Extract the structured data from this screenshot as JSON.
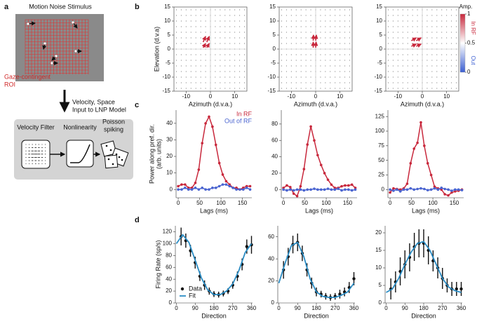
{
  "panels": [
    "a",
    "b",
    "c",
    "d"
  ],
  "diagram": {
    "stimulus_title": "Motion Noise Stimulus",
    "roi_label": [
      "Gaze-contingent",
      "ROI"
    ],
    "arrow_label": [
      "Velocity, Space",
      "Input to LNP Model"
    ],
    "stages": [
      [
        "Velocity Filter"
      ],
      [
        "Nonlinearity"
      ],
      [
        "Poisson",
        "spiking"
      ]
    ]
  },
  "chart_data": [
    {
      "type": "quiver",
      "xlabel": "Azimuth (d.v.a.)",
      "ylabel": "Elevation (d.v.a)",
      "xlim": [
        -15,
        15
      ],
      "ylim": [
        -15,
        15
      ],
      "xticks": [
        -10,
        0,
        10
      ],
      "yticks": [
        -15,
        -10,
        -5,
        0,
        5,
        10,
        15
      ],
      "color": "#c8283c",
      "arrows": {
        "x": [
          -3,
          -1.5,
          -3,
          -1.5
        ],
        "y": [
          2.5,
          2.5,
          0.5,
          0.5
        ],
        "u": [
          1,
          1,
          1,
          1
        ],
        "v": [
          2,
          2,
          1.5,
          1.5
        ]
      },
      "colorbar": {
        "title": "Amp.",
        "clim": [
          0,
          1
        ],
        "ticks": [
          1,
          0.5,
          0
        ],
        "labels": [
          "In RF",
          "Out"
        ],
        "colors": [
          "#c8283c",
          "#ffffff",
          "#3c5fd2"
        ]
      }
    },
    {
      "type": "quiver",
      "xlabel": "Azimuth (d.v.a.)",
      "xlim": [
        -15,
        15
      ],
      "ylim": [
        -15,
        15
      ],
      "xticks": [
        -10,
        0,
        10
      ],
      "yticks": [
        -15,
        -10,
        -5,
        0,
        5,
        10,
        15
      ],
      "color": "#c8283c",
      "arrows": {
        "x": [
          -1,
          0,
          -1,
          0
        ],
        "y": [
          3,
          3,
          0.5,
          0.5
        ],
        "u": [
          0.1,
          0.3,
          0,
          0.2
        ],
        "v": [
          2,
          2,
          2,
          2
        ]
      }
    },
    {
      "type": "quiver",
      "xlabel": "Azimuth (d.v.a.)",
      "xlim": [
        -15,
        15
      ],
      "ylim": [
        -15,
        15
      ],
      "xticks": [
        -10,
        0,
        10
      ],
      "yticks": [
        -15,
        -10,
        -5,
        0,
        5,
        10,
        15
      ],
      "color": "#c8283c",
      "arrows": {
        "x": [
          -4.5,
          -2.5,
          -4.5,
          -2.5
        ],
        "y": [
          3,
          3,
          1,
          1
        ],
        "u": [
          2,
          2,
          2,
          2
        ],
        "v": [
          1,
          1,
          0.8,
          0.8
        ]
      }
    },
    {
      "type": "line",
      "xlabel": "Lags (ms)",
      "ylabel": [
        "Power along pref. dir.",
        "(arb. units)"
      ],
      "legend": true,
      "xlim": [
        -5,
        172
      ],
      "ylim": [
        -5,
        48
      ],
      "xticks": [
        0,
        50,
        100,
        150
      ],
      "yticks": [
        0,
        10,
        20,
        30,
        40
      ],
      "x": [
        0,
        8,
        16,
        24,
        32,
        40,
        48,
        56,
        64,
        72,
        80,
        88,
        96,
        104,
        112,
        120,
        128,
        136,
        144,
        152,
        160,
        168
      ],
      "series": [
        {
          "name": "In RF",
          "color": "#c8283c",
          "values": [
            2,
            3,
            3,
            1,
            1,
            4,
            12,
            28,
            40,
            44,
            38,
            27,
            16,
            9,
            5,
            3,
            1,
            1,
            0,
            1,
            2,
            2
          ]
        },
        {
          "name": "Out of RF",
          "color": "#4a64d0",
          "values": [
            0,
            0,
            1,
            0,
            0,
            1,
            0,
            1,
            0,
            0,
            1,
            1,
            2,
            3,
            3,
            2,
            1,
            0,
            0,
            0,
            1,
            0
          ]
        }
      ]
    },
    {
      "type": "line",
      "xlabel": "Lags (ms)",
      "xlim": [
        -5,
        172
      ],
      "ylim": [
        -10,
        97
      ],
      "xticks": [
        0,
        50,
        100,
        150
      ],
      "yticks": [
        0,
        20,
        40,
        60,
        80
      ],
      "x": [
        0,
        8,
        16,
        24,
        32,
        40,
        48,
        56,
        64,
        72,
        80,
        88,
        96,
        104,
        112,
        120,
        128,
        136,
        144,
        152,
        160,
        168
      ],
      "series": [
        {
          "color": "#c8283c",
          "values": [
            2,
            5,
            3,
            -5,
            -8,
            4,
            25,
            55,
            77,
            60,
            42,
            30,
            20,
            12,
            6,
            2,
            2,
            4,
            5,
            5,
            6,
            2
          ]
        },
        {
          "color": "#4a64d0",
          "values": [
            0,
            -1,
            0,
            -1,
            0,
            0,
            -1,
            0,
            0,
            1,
            0,
            0,
            0,
            1,
            0,
            0,
            1,
            -1,
            0,
            0,
            -1,
            0
          ]
        }
      ]
    },
    {
      "type": "line",
      "xlabel": "Lags (ms)",
      "xlim": [
        -5,
        172
      ],
      "ylim": [
        -14,
        136
      ],
      "xticks": [
        0,
        50,
        100,
        150
      ],
      "yticks": [
        0,
        25,
        50,
        75,
        100,
        125
      ],
      "x": [
        0,
        8,
        16,
        24,
        32,
        40,
        48,
        56,
        64,
        72,
        80,
        88,
        96,
        104,
        112,
        120,
        128,
        136,
        144,
        152,
        160,
        168
      ],
      "series": [
        {
          "color": "#c8283c",
          "values": [
            -5,
            2,
            1,
            0,
            2,
            10,
            45,
            70,
            80,
            115,
            75,
            45,
            25,
            5,
            2,
            0,
            -8,
            -10,
            -5,
            -3,
            -2,
            0
          ]
        },
        {
          "color": "#4a64d0",
          "values": [
            0,
            -2,
            0,
            -3,
            0,
            0,
            2,
            0,
            1,
            2,
            1,
            -1,
            0,
            2,
            0,
            3,
            1,
            0,
            -2,
            0,
            0,
            -1
          ]
        }
      ]
    },
    {
      "type": "errorbar",
      "xlabel": "Direction",
      "ylabel": "Firing Rate (sp/s)",
      "legend": true,
      "xlim": [
        -5,
        365
      ],
      "ylim": [
        0,
        130
      ],
      "xticks": [
        0,
        90,
        180,
        270,
        360
      ],
      "yticks": [
        0,
        20,
        40,
        60,
        80,
        100,
        120
      ],
      "series": [
        {
          "name": "Data",
          "color": "#111111",
          "x": [
            22.5,
            45,
            67.5,
            90,
            112.5,
            135,
            157.5,
            180,
            202.5,
            225,
            247.5,
            270,
            292.5,
            315,
            337.5,
            360
          ],
          "values": [
            112,
            105,
            88,
            68,
            45,
            30,
            20,
            15,
            14,
            16,
            20,
            30,
            45,
            65,
            95,
            98
          ],
          "errors": [
            15,
            12,
            10,
            10,
            8,
            8,
            6,
            5,
            5,
            5,
            5,
            6,
            8,
            10,
            12,
            15
          ]
        },
        {
          "name": "Fit",
          "color": "#2a8cc4",
          "x": [
            0,
            30,
            60,
            90,
            120,
            150,
            180,
            210,
            240,
            270,
            300,
            330,
            360
          ],
          "values": [
            100,
            115,
            102,
            72,
            42,
            22,
            14,
            14,
            20,
            32,
            55,
            85,
            100
          ]
        }
      ]
    },
    {
      "type": "errorbar",
      "xlabel": "Direction",
      "xlim": [
        -5,
        365
      ],
      "ylim": [
        0,
        70
      ],
      "xticks": [
        0,
        90,
        180,
        270,
        360
      ],
      "yticks": [
        0,
        20,
        40,
        60
      ],
      "series": [
        {
          "color": "#111111",
          "x": [
            22.5,
            45,
            67.5,
            90,
            112.5,
            135,
            157.5,
            180,
            202.5,
            225,
            247.5,
            270,
            292.5,
            315,
            337.5,
            360
          ],
          "values": [
            30,
            42,
            53,
            55,
            45,
            30,
            18,
            10,
            8,
            6,
            5,
            6,
            8,
            10,
            14,
            22
          ],
          "errors": [
            8,
            8,
            8,
            8,
            7,
            6,
            5,
            4,
            3,
            3,
            3,
            3,
            4,
            4,
            5,
            6
          ]
        },
        {
          "color": "#2a8cc4",
          "x": [
            0,
            30,
            60,
            90,
            120,
            150,
            180,
            210,
            240,
            270,
            300,
            330,
            360
          ],
          "values": [
            18,
            36,
            52,
            55,
            42,
            22,
            10,
            6,
            5,
            5,
            7,
            10,
            18
          ]
        }
      ]
    },
    {
      "type": "errorbar",
      "xlabel": "Direction",
      "xlim": [
        -5,
        365
      ],
      "ylim": [
        0,
        22
      ],
      "xticks": [
        0,
        90,
        180,
        270,
        360
      ],
      "yticks": [
        0,
        5,
        10,
        15,
        20
      ],
      "series": [
        {
          "color": "#111111",
          "x": [
            22.5,
            45,
            67.5,
            90,
            112.5,
            135,
            157.5,
            180,
            202.5,
            225,
            247.5,
            270,
            292.5,
            315,
            337.5,
            360
          ],
          "values": [
            4,
            6,
            9,
            11,
            13,
            16,
            17,
            17,
            15,
            12,
            10,
            7,
            5,
            4,
            4,
            4
          ],
          "errors": [
            3,
            3,
            4,
            4,
            4,
            4,
            4,
            4,
            4,
            3,
            3,
            3,
            2,
            2,
            2,
            2
          ]
        },
        {
          "color": "#2a8cc4",
          "x": [
            0,
            30,
            60,
            90,
            120,
            150,
            180,
            210,
            240,
            270,
            300,
            330,
            360
          ],
          "values": [
            3,
            4,
            7,
            11,
            14.5,
            17,
            17.5,
            15,
            11,
            7,
            4.5,
            3.5,
            3
          ]
        }
      ]
    }
  ]
}
